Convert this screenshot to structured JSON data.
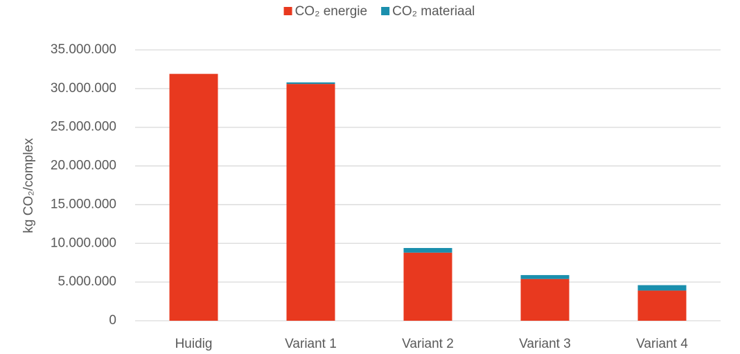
{
  "chart_data": {
    "type": "stacked_bar",
    "y_axis_label": "kg CO₂/complex",
    "categories": [
      "Huidig",
      "Variant 1",
      "Variant 2",
      "Variant 3",
      "Variant 4"
    ],
    "series": [
      {
        "name": "CO₂ energie",
        "color": "#e8391f",
        "values": [
          31900000,
          30600000,
          8800000,
          5400000,
          3900000
        ]
      },
      {
        "name": "CO₂ materiaal",
        "color": "#1b8fad",
        "values": [
          0,
          200000,
          600000,
          500000,
          700000
        ]
      }
    ],
    "ylim": [
      0,
      35000000
    ],
    "yticks": [
      0,
      {
        "value": 5000000,
        "label": "5.000.000"
      },
      {
        "value": 10000000,
        "label": "10.000.000"
      },
      {
        "value": 15000000,
        "label": "15.000.000"
      },
      {
        "value": 20000000,
        "label": "20.000.000"
      },
      {
        "value": 25000000,
        "label": "25.000.000"
      },
      {
        "value": 30000000,
        "label": "30.000.000"
      },
      {
        "value": 35000000,
        "label": "35.000.000"
      }
    ],
    "grid": true,
    "legend_position": "top"
  }
}
